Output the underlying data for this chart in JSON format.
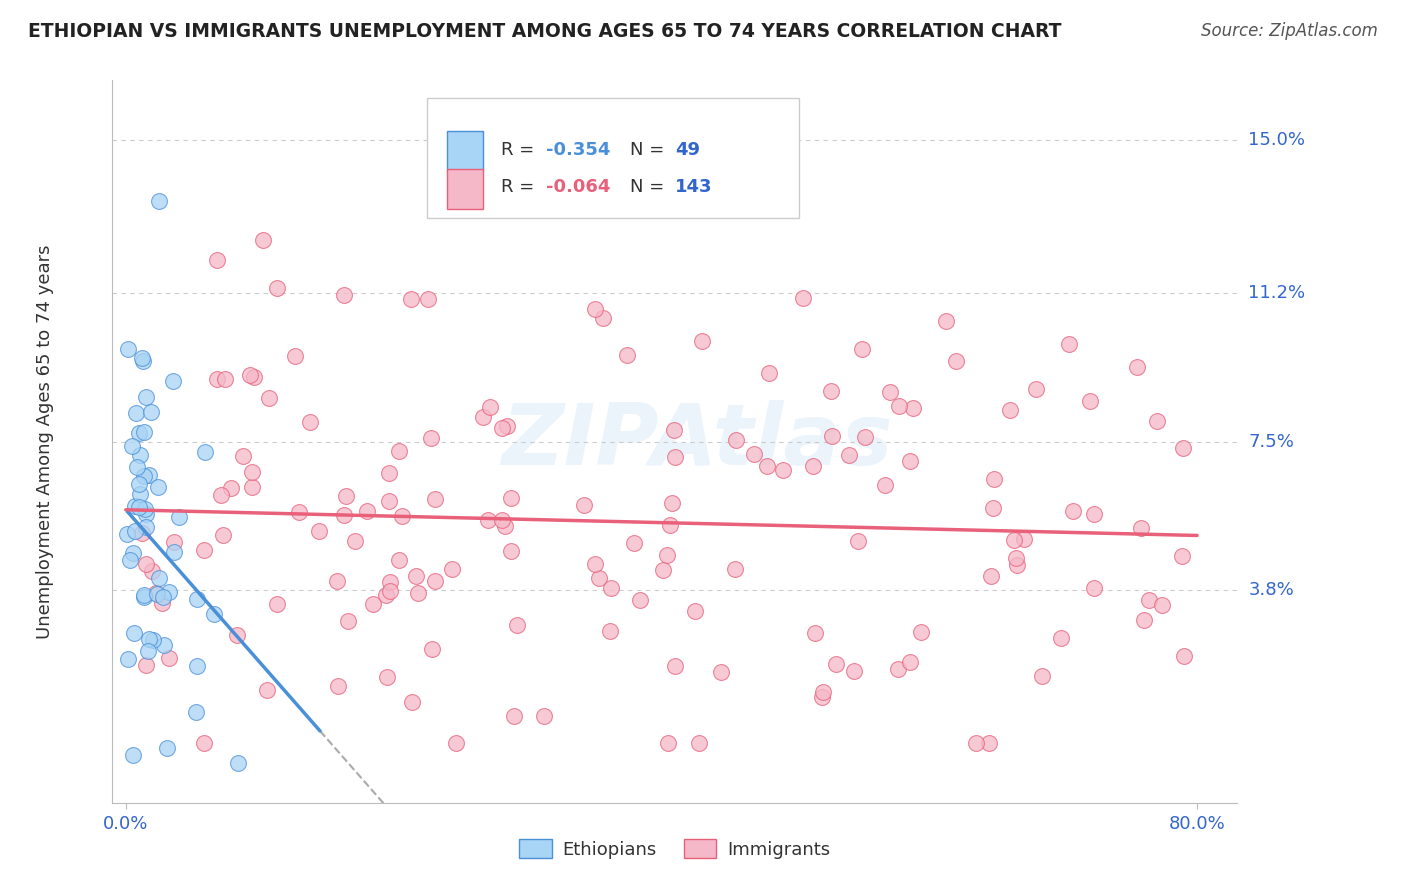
{
  "title": "ETHIOPIAN VS IMMIGRANTS UNEMPLOYMENT AMONG AGES 65 TO 74 YEARS CORRELATION CHART",
  "source": "Source: ZipAtlas.com",
  "ylabel": "Unemployment Among Ages 65 to 74 years",
  "xlim": [
    0.0,
    0.8
  ],
  "ylim": [
    -0.015,
    0.165
  ],
  "xticklabels": [
    "0.0%",
    "80.0%"
  ],
  "ytick_values": [
    0.038,
    0.075,
    0.112,
    0.15
  ],
  "ytick_labels": [
    "3.8%",
    "7.5%",
    "11.2%",
    "15.0%"
  ],
  "ethiopians_R": "-0.354",
  "ethiopians_N": "49",
  "immigrants_R": "-0.064",
  "immigrants_N": "143",
  "ethiopian_color": "#A8D4F5",
  "immigrant_color": "#F5B8C8",
  "ethiopian_line_color": "#4A90D9",
  "immigrant_line_color": "#E8607A",
  "background_color": "#FFFFFF",
  "watermark": "ZIPAtlas",
  "grid_color": "#CCCCCC",
  "title_color": "#222222",
  "label_color": "#3366CC",
  "source_color": "#555555"
}
